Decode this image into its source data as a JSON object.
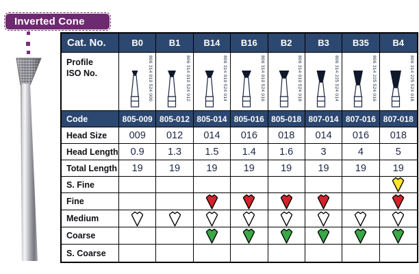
{
  "badge": {
    "label": "Inverted Cone"
  },
  "colors": {
    "navy": "#2c4770",
    "purple": "#6e2a70",
    "purple_dot": "#7b2e7b",
    "drop_red": "#d2232a",
    "drop_green": "#3aa847",
    "drop_yellow": "#ffe32b",
    "drop_white": "#ffffff"
  },
  "table": {
    "corner_label": "Cat. No.",
    "profile_label_line1": "Profile",
    "profile_label_line2": "ISO No.",
    "columns": [
      {
        "label": "B0",
        "iso": "806 314 010 524 009",
        "head_w": 9,
        "head_h": 7
      },
      {
        "label": "B1",
        "iso": "806 314 010 524 012",
        "head_w": 12,
        "head_h": 9
      },
      {
        "label": "B14",
        "iso": "806 314 010 524 014",
        "head_w": 13,
        "head_h": 10
      },
      {
        "label": "B16",
        "iso": "806 314 010 524 016",
        "head_w": 14,
        "head_h": 10
      },
      {
        "label": "B2",
        "iso": "806 314 010 524 018",
        "head_w": 15,
        "head_h": 11
      },
      {
        "label": "B3",
        "iso": "806 314 225 524 014",
        "head_w": 13,
        "head_h": 17
      },
      {
        "label": "B35",
        "iso": "806 314 225 524 016",
        "head_w": 14,
        "head_h": 21
      },
      {
        "label": "B4",
        "iso": "806 314 225 524 018",
        "head_w": 16,
        "head_h": 25
      }
    ],
    "code_row": {
      "label": "Code",
      "values": [
        "805-009",
        "805-012",
        "805-014",
        "805-016",
        "805-018",
        "807-014",
        "807-016",
        "807-018"
      ]
    },
    "spec_rows": [
      {
        "label": "Head Size",
        "values": [
          "009",
          "012",
          "014",
          "016",
          "018",
          "014",
          "016",
          "018"
        ]
      },
      {
        "label": "Head Length",
        "values": [
          "0.9",
          "1.3",
          "1.5",
          "1.4",
          "1.6",
          "3",
          "4",
          "5"
        ]
      },
      {
        "label": "Total Length",
        "values": [
          "19",
          "19",
          "19",
          "19",
          "19",
          "19",
          "19",
          "19"
        ]
      }
    ],
    "grit_rows": [
      {
        "label": "S. Fine",
        "drops": [
          "",
          "",
          "",
          "",
          "",
          "",
          "",
          "yellow"
        ]
      },
      {
        "label": "Fine",
        "drops": [
          "",
          "",
          "red",
          "red",
          "red",
          "red",
          "",
          "red"
        ]
      },
      {
        "label": "Medium",
        "drops": [
          "white",
          "white",
          "white",
          "white",
          "white",
          "white",
          "white",
          "white"
        ]
      },
      {
        "label": "Coarse",
        "drops": [
          "",
          "",
          "green",
          "green",
          "green",
          "green",
          "green",
          "green"
        ]
      },
      {
        "label": "S. Coarse",
        "drops": [
          "",
          "",
          "",
          "",
          "",
          "",
          "",
          ""
        ]
      }
    ]
  }
}
